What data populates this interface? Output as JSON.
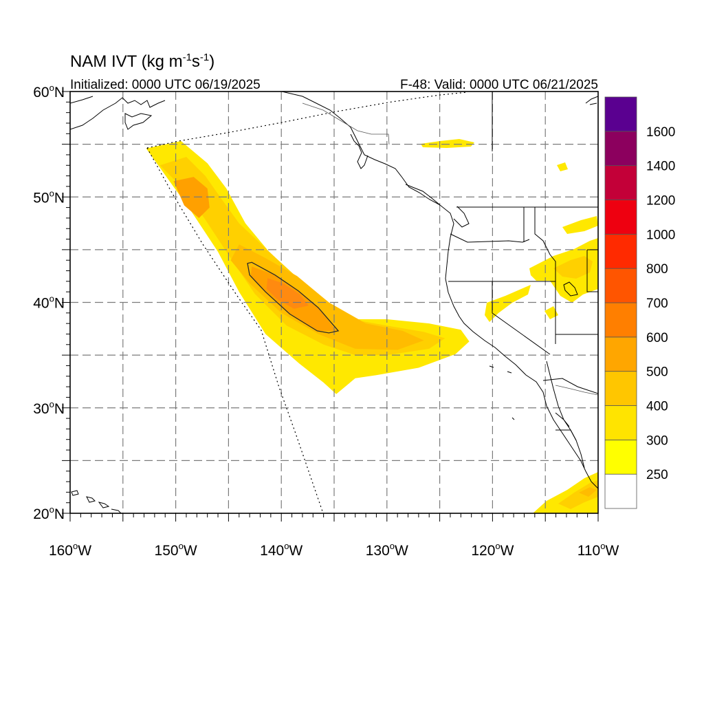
{
  "title": {
    "main": "NAM IVT (kg m",
    "sup1": "-1",
    "mid": "s",
    "sup2": "-1",
    "end": ")"
  },
  "subtitle_left": "Initialized: 0000 UTC 06/19/2025",
  "subtitle_right": "F-48: Valid: 0000 UTC 06/21/2025",
  "map": {
    "lon_range": [
      -160,
      -110
    ],
    "lat_range": [
      20,
      60
    ],
    "lon_ticks": [
      {
        "value": -160,
        "label": "160",
        "hemi": "W"
      },
      {
        "value": -150,
        "label": "150",
        "hemi": "W"
      },
      {
        "value": -140,
        "label": "140",
        "hemi": "W"
      },
      {
        "value": -130,
        "label": "130",
        "hemi": "W"
      },
      {
        "value": -120,
        "label": "120",
        "hemi": "W"
      },
      {
        "value": -110,
        "label": "110",
        "hemi": "W"
      }
    ],
    "lat_ticks": [
      {
        "value": 60,
        "label": "60",
        "hemi": "N"
      },
      {
        "value": 50,
        "label": "50",
        "hemi": "N"
      },
      {
        "value": 40,
        "label": "40",
        "hemi": "N"
      },
      {
        "value": 30,
        "label": "30",
        "hemi": "N"
      },
      {
        "value": 20,
        "label": "20",
        "hemi": "N"
      }
    ],
    "grid_lon": [
      -155,
      -150,
      -145,
      -140,
      -135,
      -130,
      -125,
      -120,
      -115
    ],
    "grid_lat": [
      55,
      50,
      45,
      40,
      35,
      30,
      25
    ],
    "grid": true
  },
  "colorbar": {
    "colors": [
      "#ffffff",
      "#ffff00",
      "#ffe400",
      "#ffc600",
      "#ffa600",
      "#ff7f00",
      "#ff5500",
      "#ff2a00",
      "#ee0010",
      "#c30038",
      "#8c005e",
      "#5a0090"
    ],
    "labels": [
      "250",
      "300",
      "400",
      "500",
      "600",
      "700",
      "800",
      "1000",
      "1200",
      "1400",
      "1600"
    ]
  },
  "ivt_plume": {
    "levels": [
      {
        "min": 250,
        "color": "#ffe800",
        "outline": [
          [
            -152.8,
            54.6
          ],
          [
            -149.5,
            55.3
          ],
          [
            -147,
            53.2
          ],
          [
            -145.2,
            50.8
          ],
          [
            -143.4,
            47.5
          ],
          [
            -140.5,
            44
          ],
          [
            -137,
            41.2
          ],
          [
            -133.5,
            38.4
          ],
          [
            -130,
            38.4
          ],
          [
            -126,
            38
          ],
          [
            -123,
            37.4
          ],
          [
            -122.2,
            36.3
          ],
          [
            -123.5,
            35.1
          ],
          [
            -127,
            33.8
          ],
          [
            -131,
            33.1
          ],
          [
            -133,
            32.8
          ],
          [
            -134.8,
            31.3
          ],
          [
            -136,
            32.4
          ],
          [
            -138.3,
            34.2
          ],
          [
            -141.5,
            37
          ],
          [
            -144,
            41
          ],
          [
            -146,
            44.8
          ],
          [
            -148.5,
            48.6
          ],
          [
            -150.8,
            51.8
          ]
        ]
      },
      {
        "min": 300,
        "color": "#ffd000",
        "outline": [
          [
            -151.5,
            53
          ],
          [
            -149,
            53.8
          ],
          [
            -147.2,
            52
          ],
          [
            -145.8,
            50
          ],
          [
            -144,
            47.5
          ],
          [
            -140.5,
            44.2
          ],
          [
            -137,
            41
          ],
          [
            -134,
            38.5
          ],
          [
            -130,
            37.8
          ],
          [
            -126.5,
            37.2
          ],
          [
            -124.5,
            36.6
          ],
          [
            -126,
            35.6
          ],
          [
            -130,
            35
          ],
          [
            -133,
            35
          ],
          [
            -136,
            36
          ],
          [
            -139.5,
            37.8
          ],
          [
            -142.5,
            40.8
          ],
          [
            -145,
            44.5
          ],
          [
            -147.3,
            48
          ],
          [
            -149.5,
            51
          ]
        ]
      },
      {
        "min": 400,
        "color": "#ffbc00",
        "outline": [
          [
            -144,
            45.5
          ],
          [
            -141.5,
            44.2
          ],
          [
            -138.5,
            42.5
          ],
          [
            -135.5,
            40
          ],
          [
            -132,
            38
          ],
          [
            -128.5,
            37.3
          ],
          [
            -126.5,
            36.4
          ],
          [
            -129,
            35.5
          ],
          [
            -133,
            35.6
          ],
          [
            -136.5,
            37
          ],
          [
            -140,
            39
          ],
          [
            -143,
            41.8
          ],
          [
            -144.8,
            44
          ]
        ]
      },
      {
        "min": 500,
        "color": "#ffa000",
        "outline": [
          [
            -142.8,
            43.4
          ],
          [
            -140.6,
            42.6
          ],
          [
            -138.4,
            41.1
          ],
          [
            -136.5,
            39.5
          ],
          [
            -134.8,
            37.3
          ],
          [
            -136.6,
            37.3
          ],
          [
            -139.2,
            38.9
          ],
          [
            -141.5,
            41
          ],
          [
            -142.9,
            42.5
          ]
        ]
      },
      {
        "min": 600,
        "color": "#ff8a10",
        "outline": [
          [
            -141.3,
            42.3
          ],
          [
            -139.8,
            41.8
          ],
          [
            -138.3,
            40.8
          ],
          [
            -137.4,
            39.7
          ],
          [
            -138.8,
            39.4
          ],
          [
            -140.4,
            40.3
          ],
          [
            -141.4,
            41.3
          ]
        ]
      }
    ],
    "north_core": {
      "min": 500,
      "color": "#ffa000",
      "outline": [
        [
          -150.2,
          51.5
        ],
        [
          -148.3,
          51.9
        ],
        [
          -147,
          50.8
        ],
        [
          -146.8,
          49
        ],
        [
          -147.8,
          48
        ],
        [
          -149.2,
          49.2
        ]
      ]
    },
    "contour_outline": [
      [
        -143.2,
        43.7
      ],
      [
        -142.8,
        43.8
      ],
      [
        -140.6,
        42.6
      ],
      [
        -138.4,
        41.1
      ],
      [
        -136.5,
        39.5
      ],
      [
        -134.6,
        37.3
      ],
      [
        -135.5,
        37.1
      ],
      [
        -136.6,
        37.3
      ],
      [
        -139.2,
        38.9
      ],
      [
        -141.5,
        41
      ],
      [
        -143,
        42.6
      ]
    ]
  }
}
